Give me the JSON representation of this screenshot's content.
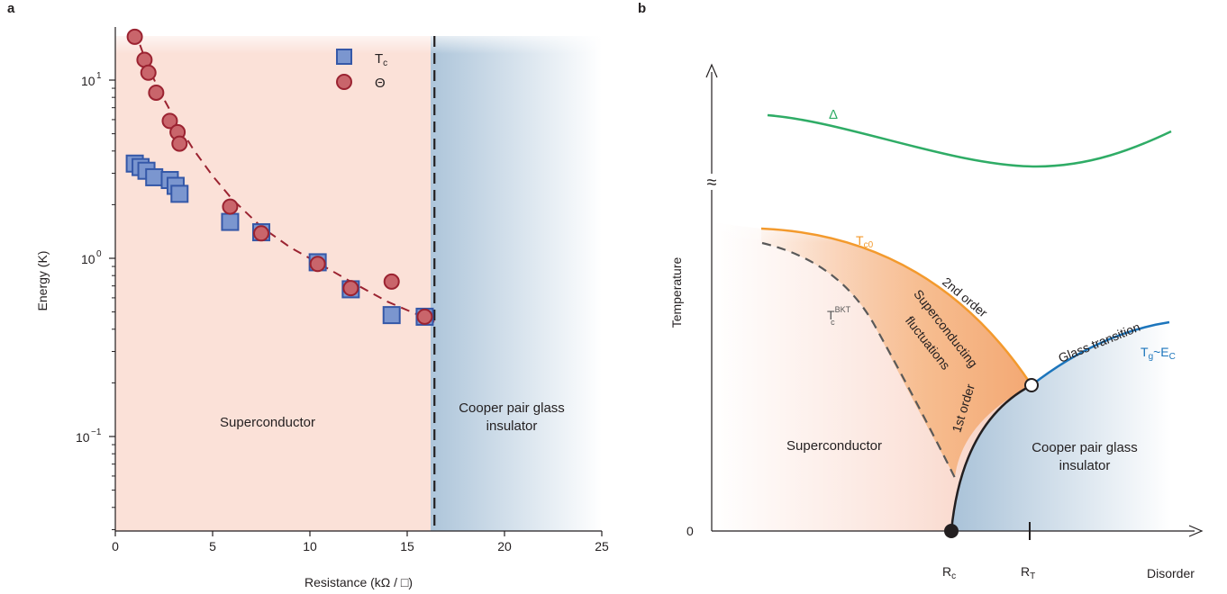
{
  "panel_a": {
    "letter": "a",
    "xlabel": "Resistance (kΩ / □)",
    "ylabel": "Energy (K)",
    "xticks": [
      "0",
      "5",
      "10",
      "15",
      "20",
      "25"
    ],
    "yticks": [
      {
        "base": "10",
        "exp": "1"
      },
      {
        "base": "10",
        "exp": "0"
      },
      {
        "base": "10",
        "exp": "−1"
      }
    ],
    "region_left": "Superconductor",
    "region_right_line1": "Cooper pair glass",
    "region_right_line2": "insulator",
    "legend": [
      {
        "main": "T",
        "sub": "c",
        "marker": "square"
      },
      {
        "main": "Θ",
        "sub": "",
        "marker": "circle"
      }
    ]
  },
  "panel_b": {
    "letter": "b",
    "ylabel": "Temperature",
    "xlabel": "Disorder",
    "zero": "0",
    "break_mark": "≈",
    "rc_main": "R",
    "rc_sub": "c",
    "rt_main": "R",
    "rt_sub": "T",
    "delta": "Δ",
    "tc0_main": "T",
    "tc0_sub": "c0",
    "tbkt_main": "T",
    "tbkt_sub": "c",
    "tbkt_sup": "BKT",
    "second_order": "2nd order",
    "first_order": "1st order",
    "sc_fluct_line1": "Superconducting",
    "sc_fluct_line2": "fluctuations",
    "glass_transition": "Glass  transition",
    "tg_main": "T",
    "tg_sub": "g",
    "tg_rest": "~E",
    "tg_rest_sub": "C",
    "region_left": "Superconductor",
    "region_right_line1": "Cooper pair glass",
    "region_right_line2": "insulator"
  },
  "colors": {
    "tc_square": "#7b96cf",
    "tc_square_edge": "#3558a8",
    "theta_circle": "#c9656b",
    "theta_edge": "#9b2331",
    "dashed_fit": "#9b2331",
    "sc_region": "#fbe1d8",
    "insulator_region": "#a9c2d8",
    "delta_curve": "#2fac66",
    "tc0_curve": "#f39a2d",
    "glass_curve": "#1c75bc",
    "fluct_fill": "#f6b988"
  },
  "chart_data": [
    {
      "type": "scatter",
      "title": "",
      "xlabel": "Resistance (kΩ / □)",
      "ylabel": "Energy (K)",
      "xlim": [
        0,
        25
      ],
      "ylim": [
        0.03,
        20
      ],
      "yscale": "log",
      "grid": false,
      "legend_position": "top-right",
      "phase_boundary_x": 16.4,
      "series": [
        {
          "name": "Tc",
          "marker": "square",
          "x": [
            1.0,
            1.3,
            1.6,
            2.0,
            2.8,
            3.1,
            3.3,
            5.9,
            7.5,
            10.4,
            12.1,
            14.2,
            15.9
          ],
          "y": [
            3.4,
            3.25,
            3.1,
            2.85,
            2.75,
            2.55,
            2.3,
            1.6,
            1.4,
            0.95,
            0.67,
            0.48,
            0.47
          ]
        },
        {
          "name": "Θ",
          "marker": "circle",
          "x": [
            1.0,
            1.5,
            1.7,
            2.1,
            2.8,
            3.2,
            3.3,
            5.9,
            7.5,
            10.4,
            12.1,
            14.2,
            15.9
          ],
          "y": [
            17.5,
            13.0,
            11.0,
            8.5,
            5.9,
            5.1,
            4.4,
            1.95,
            1.38,
            0.93,
            0.68,
            0.74,
            0.47
          ]
        }
      ],
      "fit": {
        "style": "dashed",
        "x": [
          1.0,
          1.6,
          2.2,
          3.0,
          4.0,
          5.0,
          6.0,
          7.5,
          9.0,
          10.5,
          12.0,
          14.0,
          16.4
        ],
        "y": [
          19.0,
          12.5,
          9.0,
          6.2,
          4.1,
          2.9,
          2.15,
          1.5,
          1.15,
          0.93,
          0.75,
          0.57,
          0.44
        ]
      }
    }
  ]
}
